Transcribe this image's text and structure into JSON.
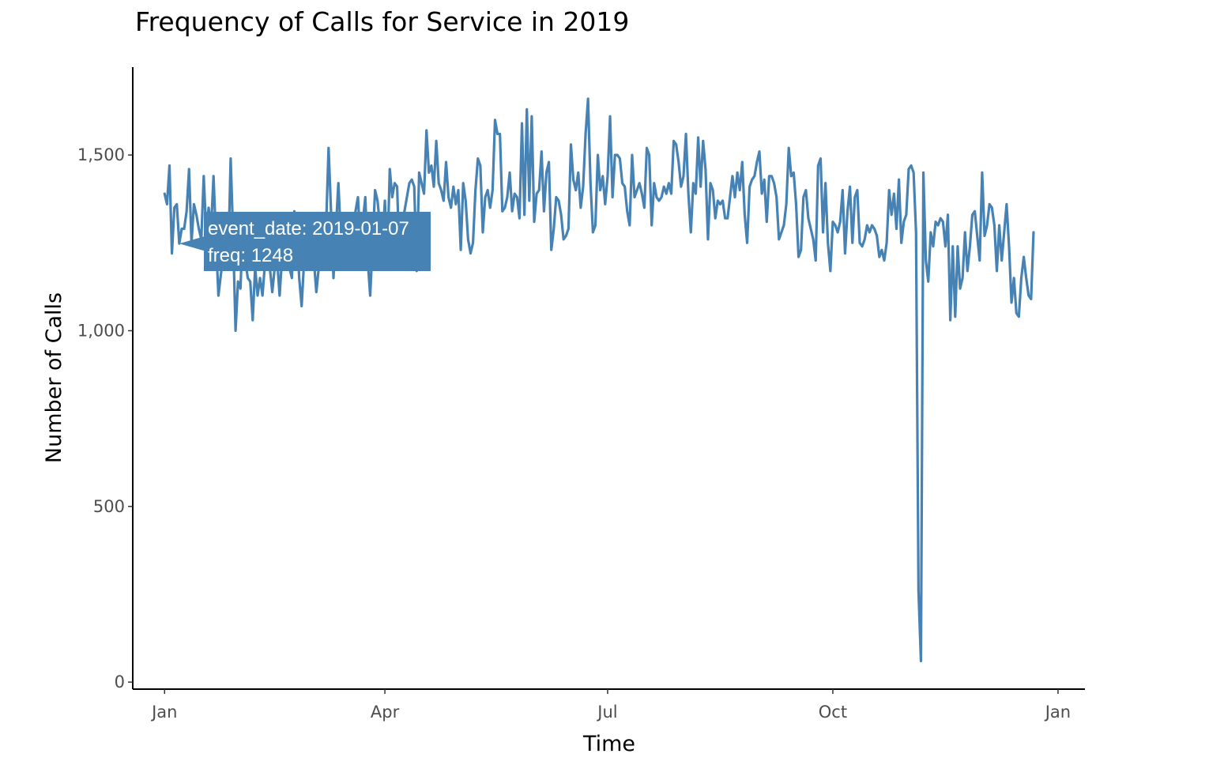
{
  "chart_data": {
    "type": "line",
    "title": "Frequency of Calls for Service in 2019",
    "xlabel": "Time",
    "ylabel": "Number of Calls",
    "x_tick_labels": [
      "Jan",
      "Apr",
      "Jul",
      "Oct",
      "Jan"
    ],
    "y_tick_labels": [
      "0",
      "500",
      "1,000",
      "1,500"
    ],
    "y_ticks": [
      0,
      500,
      1000,
      1500
    ],
    "ylim": [
      -20,
      1750
    ],
    "xlim": [
      "2018-12-19",
      "2020-01-12"
    ],
    "x_ticks": [
      "2019-01-01",
      "2019-04-01",
      "2019-07-01",
      "2019-10-01",
      "2020-01-01"
    ],
    "grid": false,
    "line_color": "#4682B4",
    "series": [
      {
        "start_date": "2019-01-01",
        "frequency": "daily",
        "values": [
          1390,
          1360,
          1470,
          1220,
          1350,
          1360,
          1248,
          1290,
          1290,
          1340,
          1460,
          1250,
          1360,
          1330,
          1290,
          1260,
          1440,
          1280,
          1350,
          1290,
          1440,
          1260,
          1100,
          1160,
          1210,
          1330,
          1200,
          1490,
          1270,
          1000,
          1140,
          1120,
          1300,
          1200,
          1150,
          1140,
          1030,
          1180,
          1100,
          1150,
          1100,
          1190,
          1230,
          1180,
          1110,
          1180,
          1200,
          1100,
          1210,
          1330,
          1230,
          1180,
          1150,
          1340,
          1300,
          1150,
          1070,
          1200,
          1250,
          1200,
          1180,
          1200,
          1110,
          1180,
          1240,
          1280,
          1300,
          1520,
          1340,
          1150,
          1290,
          1420,
          1270,
          1250,
          1300,
          1190,
          1240,
          1250,
          1340,
          1380,
          1250,
          1310,
          1380,
          1200,
          1100,
          1250,
          1400,
          1370,
          1300,
          1240,
          1370,
          1200,
          1460,
          1380,
          1420,
          1410,
          1200,
          1300,
          1340,
          1380,
          1420,
          1430,
          1410,
          1170,
          1450,
          1420,
          1390,
          1570,
          1450,
          1470,
          1410,
          1540,
          1420,
          1400,
          1370,
          1480,
          1380,
          1350,
          1410,
          1360,
          1400,
          1230,
          1420,
          1370,
          1260,
          1220,
          1250,
          1400,
          1490,
          1470,
          1280,
          1380,
          1400,
          1350,
          1400,
          1600,
          1560,
          1560,
          1340,
          1350,
          1380,
          1450,
          1340,
          1390,
          1380,
          1320,
          1590,
          1330,
          1630,
          1370,
          1610,
          1310,
          1390,
          1400,
          1510,
          1340,
          1450,
          1480,
          1230,
          1290,
          1380,
          1370,
          1330,
          1260,
          1270,
          1290,
          1530,
          1430,
          1400,
          1450,
          1350,
          1410,
          1560,
          1660,
          1420,
          1280,
          1300,
          1500,
          1400,
          1440,
          1360,
          1440,
          1610,
          1380,
          1500,
          1500,
          1490,
          1420,
          1410,
          1340,
          1300,
          1500,
          1380,
          1400,
          1420,
          1390,
          1350,
          1520,
          1500,
          1300,
          1420,
          1380,
          1370,
          1380,
          1410,
          1390,
          1420,
          1390,
          1540,
          1530,
          1480,
          1410,
          1440,
          1560,
          1390,
          1280,
          1420,
          1390,
          1550,
          1410,
          1540,
          1460,
          1260,
          1420,
          1400,
          1320,
          1370,
          1360,
          1370,
          1320,
          1320,
          1380,
          1440,
          1380,
          1450,
          1400,
          1480,
          1330,
          1250,
          1410,
          1430,
          1440,
          1480,
          1510,
          1390,
          1430,
          1310,
          1440,
          1440,
          1420,
          1380,
          1260,
          1280,
          1300,
          1360,
          1520,
          1440,
          1450,
          1360,
          1210,
          1230,
          1380,
          1400,
          1320,
          1290,
          1260,
          1200,
          1470,
          1490,
          1280,
          1420,
          1250,
          1170,
          1310,
          1300,
          1280,
          1310,
          1400,
          1220,
          1340,
          1410,
          1250,
          1380,
          1400,
          1250,
          1240,
          1260,
          1300,
          1280,
          1300,
          1290,
          1270,
          1210,
          1230,
          1200,
          1250,
          1400,
          1330,
          1390,
          1290,
          1430,
          1250,
          1310,
          1330,
          1460,
          1470,
          1450,
          1280,
          260,
          60,
          1450,
          1200,
          1140,
          1280,
          1240,
          1310,
          1300,
          1320,
          1310,
          1240,
          1330,
          1030,
          1240,
          1040,
          1240,
          1120,
          1150,
          1280,
          1170,
          1240,
          1330,
          1340,
          1270,
          1200,
          1450,
          1270,
          1300,
          1360,
          1350,
          1300,
          1170,
          1300,
          1200,
          1280,
          1360,
          1240,
          1080,
          1150,
          1050,
          1040,
          1150,
          1210,
          1150,
          1100,
          1090,
          1280
        ]
      }
    ],
    "tooltip": {
      "line1": "event_date: 2019-01-07",
      "line2": "freq: 1248",
      "date": "2019-01-07",
      "value": 1248
    }
  }
}
